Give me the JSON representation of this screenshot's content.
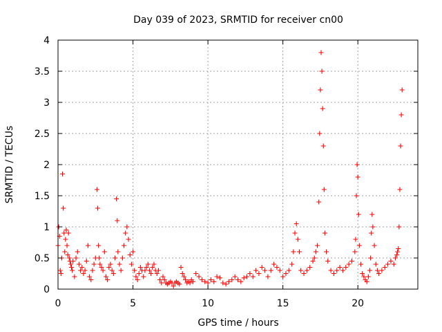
{
  "chart_data": {
    "type": "scatter",
    "title": "Day 039 of 2023, SRMTID for receiver cn00",
    "xlabel": "GPS time / hours",
    "ylabel": "SRMTID / TECUs",
    "xlim": [
      0,
      24
    ],
    "ylim": [
      0,
      4
    ],
    "xticks": [
      0,
      5,
      10,
      15,
      20
    ],
    "xtick_labels": [
      "0",
      "5",
      "10",
      "15",
      "20"
    ],
    "yticks": [
      0,
      0.5,
      1,
      1.5,
      2,
      2.5,
      3,
      3.5,
      4
    ],
    "ytick_labels": [
      "0",
      "0.5",
      "1",
      "1.5",
      "2",
      "2.5",
      "3",
      "3.5",
      "4"
    ],
    "grid": true,
    "marker": "+",
    "marker_color": "#ff0000",
    "series": [
      {
        "name": "SRMTID",
        "x": [
          0.0,
          0.05,
          0.1,
          0.15,
          0.2,
          0.25,
          0.3,
          0.35,
          0.4,
          0.45,
          0.5,
          0.55,
          0.6,
          0.65,
          0.7,
          0.75,
          0.8,
          0.85,
          0.9,
          0.95,
          1.0,
          1.1,
          1.2,
          1.3,
          1.4,
          1.5,
          1.6,
          1.7,
          1.8,
          1.9,
          2.0,
          2.1,
          2.2,
          2.3,
          2.4,
          2.5,
          2.6,
          2.65,
          2.7,
          2.75,
          2.8,
          2.9,
          3.0,
          3.1,
          3.2,
          3.3,
          3.4,
          3.5,
          3.6,
          3.7,
          3.8,
          3.9,
          3.95,
          4.0,
          4.1,
          4.2,
          4.3,
          4.4,
          4.5,
          4.6,
          4.7,
          4.8,
          4.9,
          5.0,
          5.1,
          5.2,
          5.3,
          5.4,
          5.5,
          5.6,
          5.7,
          5.8,
          5.9,
          6.0,
          6.1,
          6.2,
          6.3,
          6.4,
          6.5,
          6.6,
          6.7,
          6.8,
          6.9,
          7.0,
          7.1,
          7.2,
          7.3,
          7.4,
          7.5,
          7.6,
          7.7,
          7.8,
          7.9,
          8.0,
          8.1,
          8.2,
          8.3,
          8.4,
          8.5,
          8.6,
          8.7,
          8.8,
          8.9,
          9.0,
          9.2,
          9.4,
          9.6,
          9.8,
          10.0,
          10.2,
          10.4,
          10.6,
          10.8,
          11.0,
          11.2,
          11.4,
          11.6,
          11.8,
          12.0,
          12.2,
          12.4,
          12.6,
          12.8,
          13.0,
          13.2,
          13.4,
          13.6,
          13.8,
          14.0,
          14.2,
          14.4,
          14.6,
          14.8,
          15.0,
          15.2,
          15.4,
          15.6,
          15.7,
          15.8,
          15.9,
          16.0,
          16.1,
          16.2,
          16.4,
          16.6,
          16.8,
          17.0,
          17.1,
          17.2,
          17.3,
          17.4,
          17.45,
          17.5,
          17.55,
          17.6,
          17.65,
          17.7,
          17.75,
          17.8,
          17.9,
          18.0,
          18.2,
          18.4,
          18.6,
          18.8,
          19.0,
          19.2,
          19.4,
          19.6,
          19.8,
          19.85,
          19.9,
          19.95,
          20.0,
          20.05,
          20.1,
          20.2,
          20.3,
          20.4,
          20.5,
          20.6,
          20.7,
          20.8,
          20.85,
          20.9,
          20.95,
          21.0,
          21.1,
          21.2,
          21.3,
          21.4,
          21.6,
          21.8,
          22.0,
          22.2,
          22.4,
          22.5,
          22.6,
          22.65,
          22.7,
          22.75,
          22.8,
          22.85,
          22.9,
          22.95
        ],
        "y": [
          0.7,
          1.0,
          0.85,
          0.3,
          0.25,
          0.5,
          1.85,
          1.3,
          0.9,
          0.6,
          0.8,
          0.95,
          0.7,
          0.55,
          0.9,
          0.5,
          0.45,
          0.4,
          0.35,
          0.3,
          0.45,
          0.2,
          0.5,
          0.6,
          0.4,
          0.3,
          0.35,
          0.25,
          0.3,
          0.45,
          0.7,
          0.2,
          0.15,
          0.3,
          0.4,
          0.5,
          1.6,
          1.3,
          0.7,
          0.5,
          0.4,
          0.35,
          0.3,
          0.6,
          0.2,
          0.15,
          0.35,
          0.4,
          0.3,
          0.25,
          0.5,
          1.45,
          1.1,
          0.6,
          0.4,
          0.3,
          0.5,
          0.7,
          0.9,
          1.0,
          0.8,
          0.55,
          0.4,
          0.6,
          0.3,
          0.2,
          0.15,
          0.25,
          0.35,
          0.3,
          0.2,
          0.3,
          0.35,
          0.4,
          0.3,
          0.25,
          0.35,
          0.4,
          0.3,
          0.25,
          0.3,
          0.15,
          0.1,
          0.2,
          0.15,
          0.1,
          0.08,
          0.1,
          0.12,
          0.1,
          0.05,
          0.1,
          0.12,
          0.1,
          0.08,
          0.35,
          0.25,
          0.2,
          0.15,
          0.1,
          0.12,
          0.1,
          0.15,
          0.12,
          0.25,
          0.2,
          0.15,
          0.12,
          0.1,
          0.15,
          0.12,
          0.2,
          0.18,
          0.1,
          0.08,
          0.12,
          0.15,
          0.2,
          0.15,
          0.12,
          0.18,
          0.2,
          0.25,
          0.2,
          0.3,
          0.25,
          0.35,
          0.3,
          0.2,
          0.3,
          0.4,
          0.35,
          0.3,
          0.2,
          0.25,
          0.3,
          0.4,
          0.6,
          0.9,
          1.05,
          0.8,
          0.6,
          0.3,
          0.25,
          0.3,
          0.35,
          0.45,
          0.5,
          0.6,
          0.7,
          1.4,
          2.5,
          3.2,
          3.8,
          3.5,
          2.9,
          2.3,
          1.6,
          0.9,
          0.6,
          0.45,
          0.3,
          0.25,
          0.3,
          0.35,
          0.3,
          0.35,
          0.4,
          0.45,
          0.6,
          0.8,
          1.5,
          2.0,
          1.8,
          1.2,
          0.7,
          0.4,
          0.25,
          0.2,
          0.15,
          0.12,
          0.2,
          0.3,
          0.5,
          0.9,
          1.2,
          1.0,
          0.7,
          0.4,
          0.3,
          0.25,
          0.3,
          0.35,
          0.4,
          0.45,
          0.4,
          0.5,
          0.55,
          0.6,
          0.65,
          1.0,
          1.6,
          2.3,
          2.8,
          3.2
        ]
      }
    ]
  }
}
